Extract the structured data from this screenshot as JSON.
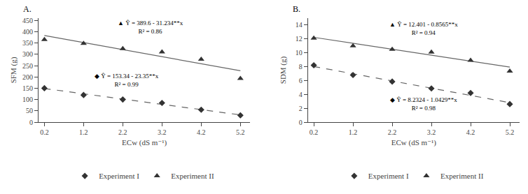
{
  "chart_data": [
    {
      "type": "scatter",
      "title": "A.",
      "x_label": "ECw (dS m⁻¹)",
      "y_label": "SFM (g)",
      "xlim": [
        0.05,
        5.45
      ],
      "xticks": [
        0.2,
        1.2,
        2.2,
        3.2,
        4.2,
        5.2
      ],
      "ylim": [
        0,
        460
      ],
      "yticks": [
        0,
        50,
        100,
        150,
        200,
        250,
        300,
        350,
        400,
        450
      ],
      "grid": false,
      "legend": "bottom",
      "series": [
        {
          "type": "line",
          "line_style": "dashed",
          "color": "#666666",
          "x": [
            0.2,
            5.2
          ],
          "values": [
            148.67,
            31.92
          ]
        },
        {
          "type": "line",
          "line_style": "solid",
          "color": "#666666",
          "x": [
            0.2,
            5.2
          ],
          "values": [
            383.3532,
            227.1832
          ]
        },
        {
          "name": "Experiment I",
          "type": "scatter",
          "marker": "diamond",
          "color": "#333333",
          "x": [
            0.2,
            1.2,
            2.2,
            3.2,
            4.2,
            5.2
          ],
          "values": [
            150,
            120,
            100,
            85,
            55,
            30
          ]
        },
        {
          "name": "Experiment II",
          "type": "scatter",
          "marker": "triangle-up",
          "color": "#333333",
          "x": [
            0.2,
            1.2,
            2.2,
            3.2,
            4.2,
            5.2
          ],
          "values": [
            365,
            348,
            325,
            310,
            278,
            193
          ]
        }
      ],
      "annotations": [
        {
          "text": "▲ Ŷ = 389.6 - 31.234**x\nR² = 0.86",
          "x": 2.9,
          "y": 420
        },
        {
          "text": "◆ Ŷ = 153.34 - 23.35**x\nR² = 0.99",
          "x": 2.3,
          "y": 185
        }
      ]
    },
    {
      "type": "scatter",
      "title": "B.",
      "x_label": "ECw (dS m⁻¹)",
      "y_label": "SDM (g)",
      "xlim": [
        0.05,
        5.45
      ],
      "xticks": [
        0.2,
        1.2,
        2.2,
        3.2,
        4.2,
        5.2
      ],
      "ylim": [
        0,
        15
      ],
      "yticks": [
        0,
        2,
        4,
        6,
        8,
        10,
        12,
        14
      ],
      "grid": false,
      "legend": "bottom",
      "series": [
        {
          "type": "line",
          "line_style": "dashed",
          "color": "#666666",
          "x": [
            0.2,
            5.2
          ],
          "values": [
            8.02382,
            2.80932
          ]
        },
        {
          "type": "line",
          "line_style": "solid",
          "color": "#666666",
          "x": [
            0.2,
            5.2
          ],
          "values": [
            12.2297,
            7.9472
          ]
        },
        {
          "name": "Experiment I",
          "type": "scatter",
          "marker": "diamond",
          "color": "#333333",
          "x": [
            0.2,
            1.2,
            2.2,
            3.2,
            4.2,
            5.2
          ],
          "values": [
            8.2,
            6.8,
            5.85,
            4.85,
            4.2,
            2.6
          ]
        },
        {
          "name": "Experiment II",
          "type": "scatter",
          "marker": "triangle-up",
          "color": "#333333",
          "x": [
            0.2,
            1.2,
            2.2,
            3.2,
            4.2,
            5.2
          ],
          "values": [
            12.1,
            11.0,
            10.5,
            10.1,
            8.9,
            7.35
          ]
        }
      ],
      "annotations": [
        {
          "text": "▲ Ŷ = 12.401 - 0.8565**x\nR² = 0.94",
          "x": 3.0,
          "y": 13.5
        },
        {
          "text": "◆ Ŷ = 8.2324 - 1.0429**x\nR² = 0.98",
          "x": 3.0,
          "y": 2.6
        }
      ]
    }
  ]
}
